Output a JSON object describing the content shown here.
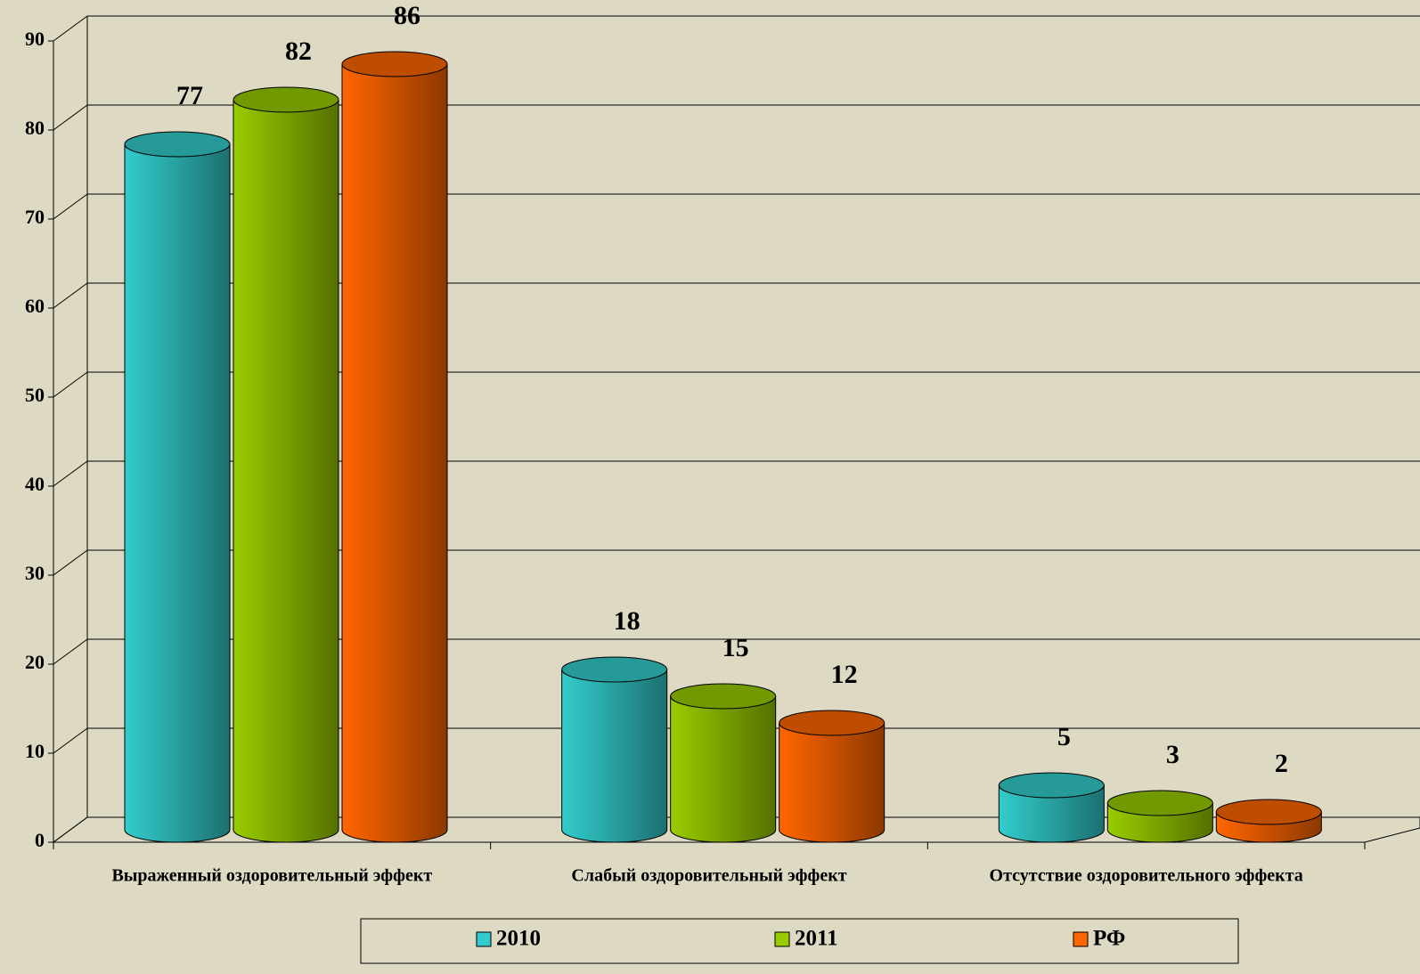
{
  "chart_data": {
    "type": "bar3d",
    "categories": [
      "Выраженный оздоровительный эффект",
      "Слабый оздоровительный эффект",
      "Отсутствие оздоровительного эффекта"
    ],
    "series": [
      {
        "name": "2010",
        "color": "#33cccc",
        "values": [
          77,
          18,
          5
        ]
      },
      {
        "name": "2011",
        "color": "#99cc00",
        "values": [
          82,
          15,
          3
        ]
      },
      {
        "name": "РФ",
        "color": "#ff6600",
        "values": [
          86,
          12,
          2
        ]
      }
    ],
    "ylim": [
      0,
      90
    ],
    "yticks": [
      0,
      10,
      20,
      30,
      40,
      50,
      60,
      70,
      80,
      90
    ],
    "grid": true,
    "legend": "bottom"
  }
}
